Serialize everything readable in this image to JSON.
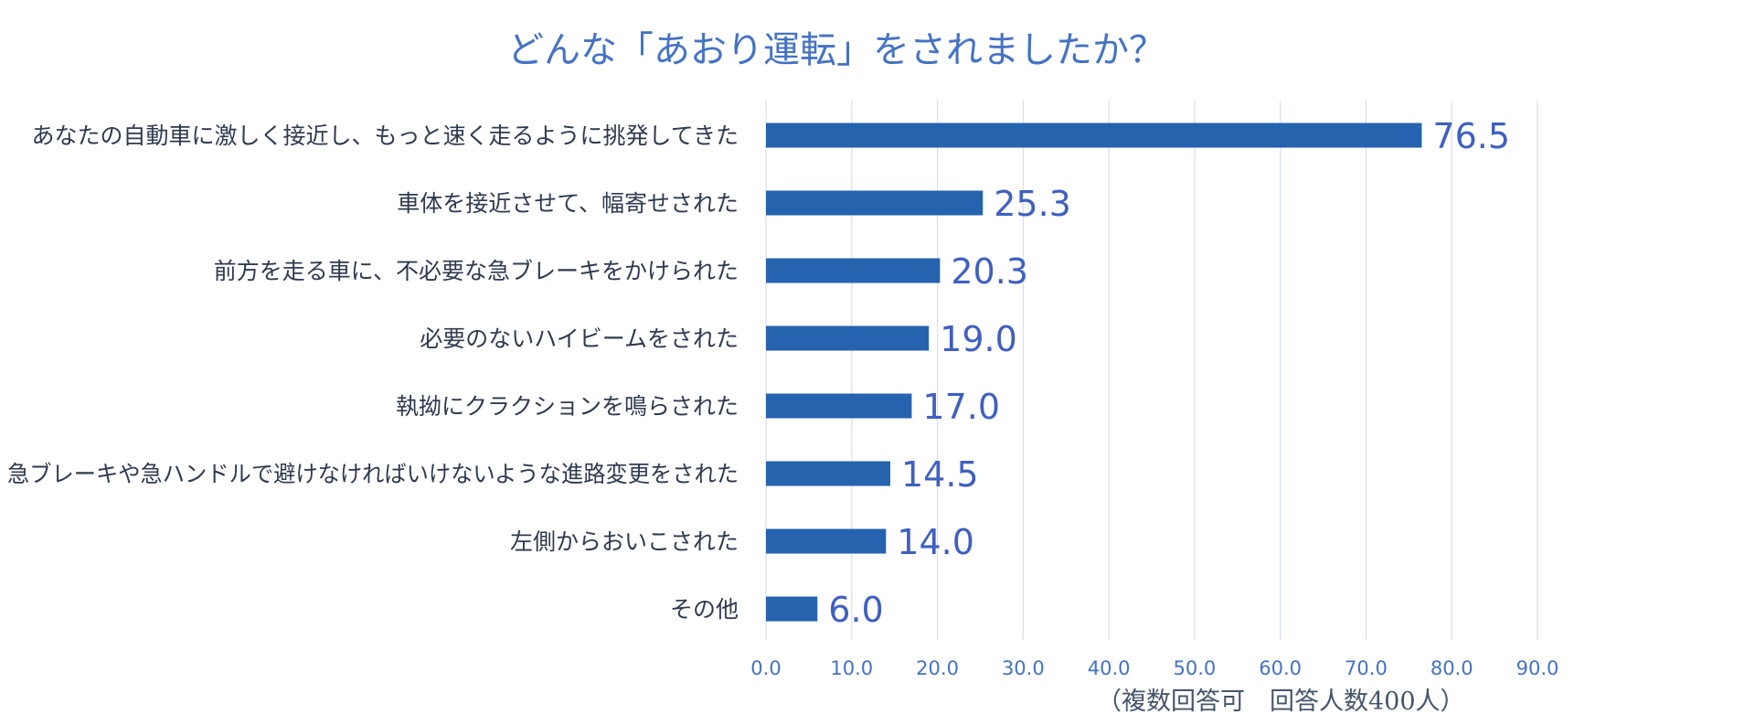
{
  "chart_data": {
    "type": "bar",
    "orientation": "horizontal",
    "title": "どんな「あおり運転」をされましたか？",
    "note": "（複数回答可　回答人数400人）",
    "categories": [
      "あなたの自動車に激しく接近し、もっと速く走るように挑発してきた",
      "車体を接近させて、幅寄せされた",
      "前方を走る車に、不必要な急ブレーキをかけられた",
      "必要のないハイビームをされた",
      "執拗にクラクションを鳴らされた",
      "急ブレーキや急ハンドルで避けなければいけないような進路変更をされた",
      "左側からおいこされた",
      "その他"
    ],
    "values": [
      76.5,
      25.3,
      20.3,
      19.0,
      17.0,
      14.5,
      14.0,
      6.0
    ],
    "data_labels": [
      "76.5",
      "25.3",
      "20.3",
      "19.0",
      "17.0",
      "14.5",
      "14.0",
      "6.0"
    ],
    "xlim": [
      0,
      90
    ],
    "x_ticks": [
      "0.0",
      "10.0",
      "20.0",
      "30.0",
      "40.0",
      "50.0",
      "60.0",
      "70.0",
      "80.0",
      "90.0"
    ],
    "grid": true,
    "legend": "none",
    "colors": {
      "bar": "#2563AE",
      "title": "#4472C4",
      "data_label": "#3F5FC1",
      "tick_label": "#4472C4",
      "category_label": "#2F3A4F",
      "gridline": "#D9DEF0",
      "note": "#44546A"
    }
  }
}
